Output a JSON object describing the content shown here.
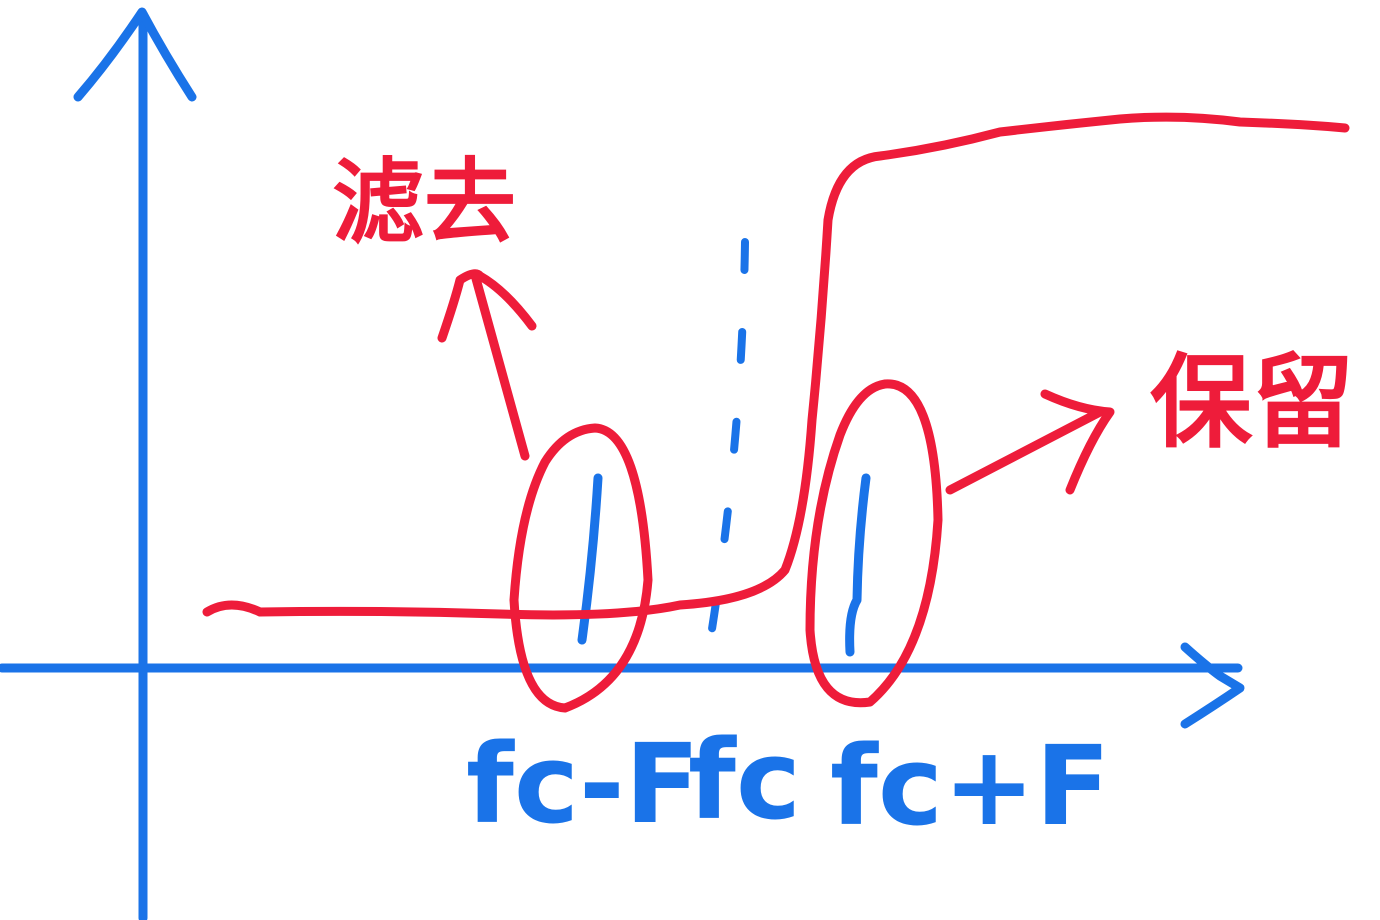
{
  "colors": {
    "axis": "#1a73e8",
    "annotation": "#ee1c3a",
    "background": "#ffffff"
  },
  "labels": {
    "lower_sideband": "fc-F",
    "carrier": "fc",
    "upper_sideband": "fc+F"
  },
  "annotations": {
    "removed": "滤去",
    "kept": "保留"
  },
  "elements": {
    "filter_response": "high-pass filter curve",
    "lower_marker": "ellipse around lower sideband line",
    "upper_marker": "ellipse around upper sideband line"
  }
}
